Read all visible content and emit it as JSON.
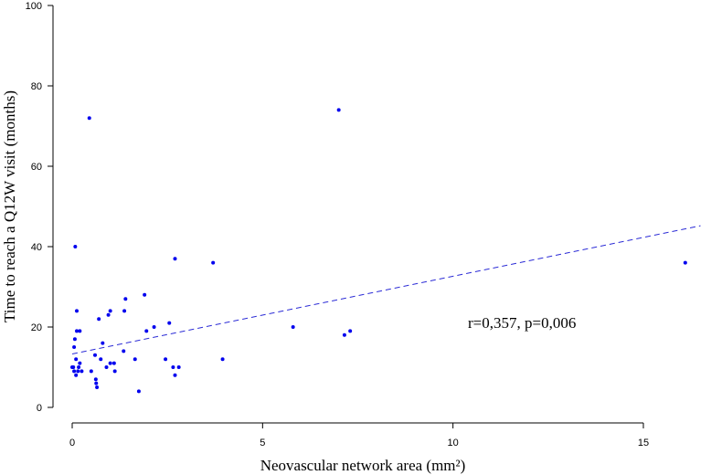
{
  "chart_data": {
    "type": "scatter",
    "title": "",
    "xlabel": "Neovascular network area (mm²)",
    "ylabel": "Time to reach a Q12W visit (months)",
    "xlim": [
      0,
      16.5
    ],
    "ylim": [
      0,
      100
    ],
    "xticks": [
      0,
      5,
      10,
      15
    ],
    "yticks": [
      0,
      20,
      40,
      60,
      80,
      100
    ],
    "grid": false,
    "annotation": "r=0,357, p=0,006",
    "trendline": {
      "style": "dashed",
      "color": "#2b2bd6",
      "x": [
        0,
        16.5
      ],
      "y": [
        13.3,
        45.2
      ]
    },
    "series": [
      {
        "color": "#0000ee",
        "points": [
          [
            0.0,
            10
          ],
          [
            0.03,
            10
          ],
          [
            0.05,
            9
          ],
          [
            0.05,
            15
          ],
          [
            0.07,
            17
          ],
          [
            0.08,
            40
          ],
          [
            0.1,
            8
          ],
          [
            0.1,
            12
          ],
          [
            0.12,
            19
          ],
          [
            0.12,
            24
          ],
          [
            0.15,
            9
          ],
          [
            0.17,
            10
          ],
          [
            0.2,
            19
          ],
          [
            0.2,
            11
          ],
          [
            0.25,
            9
          ],
          [
            0.45,
            72
          ],
          [
            0.5,
            9
          ],
          [
            0.6,
            13
          ],
          [
            0.62,
            7
          ],
          [
            0.63,
            6
          ],
          [
            0.65,
            5
          ],
          [
            0.7,
            22
          ],
          [
            0.75,
            12
          ],
          [
            0.8,
            16
          ],
          [
            0.9,
            10
          ],
          [
            0.95,
            23
          ],
          [
            1.0,
            24
          ],
          [
            1.0,
            11
          ],
          [
            1.1,
            11
          ],
          [
            1.12,
            9
          ],
          [
            1.35,
            14
          ],
          [
            1.37,
            24
          ],
          [
            1.4,
            27
          ],
          [
            1.65,
            12
          ],
          [
            1.75,
            4
          ],
          [
            1.9,
            28
          ],
          [
            1.95,
            19
          ],
          [
            2.15,
            20
          ],
          [
            2.45,
            12
          ],
          [
            2.55,
            21
          ],
          [
            2.65,
            10
          ],
          [
            2.7,
            8
          ],
          [
            2.7,
            37
          ],
          [
            2.8,
            10
          ],
          [
            3.7,
            36
          ],
          [
            3.95,
            12
          ],
          [
            5.8,
            20
          ],
          [
            7.0,
            74
          ],
          [
            7.15,
            18
          ],
          [
            7.3,
            19
          ],
          [
            16.1,
            36
          ]
        ]
      }
    ]
  }
}
